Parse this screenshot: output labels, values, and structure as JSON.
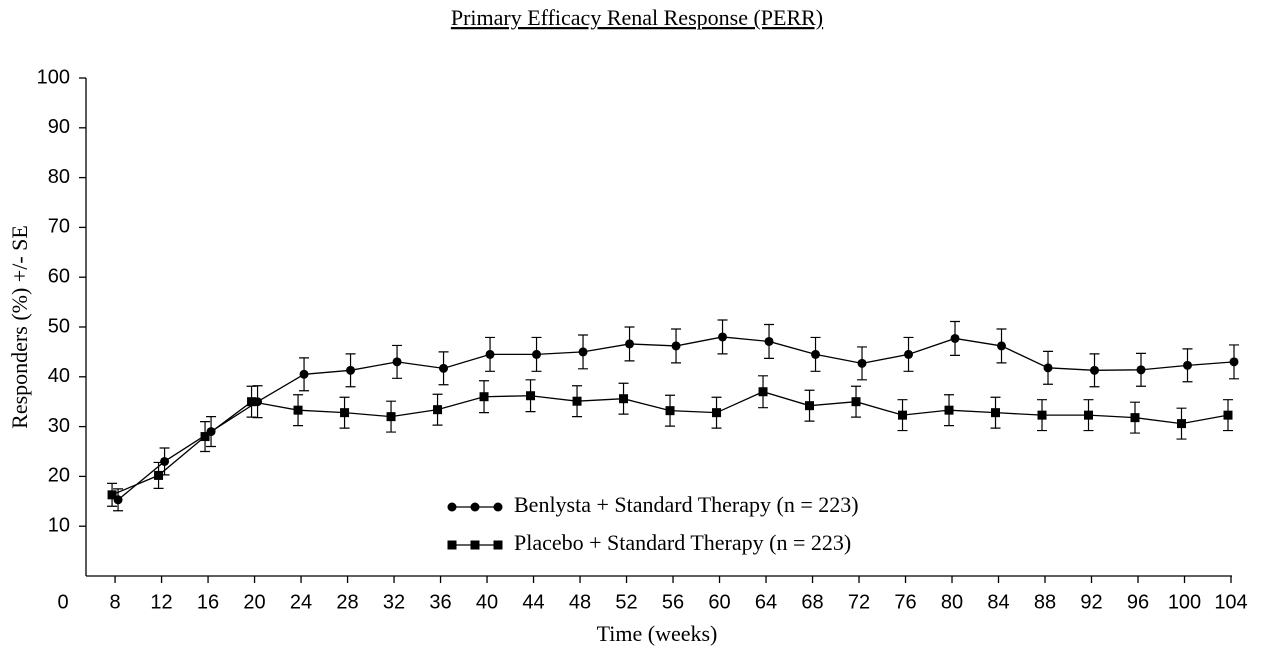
{
  "chart_data": {
    "type": "line",
    "title": "Primary Efficacy Renal Response (PERR)",
    "x_label": "Time (weeks)",
    "y_label": "Responders (%) +/- SE",
    "origin_label": "0",
    "x": [
      8,
      12,
      16,
      20,
      24,
      28,
      32,
      36,
      40,
      44,
      48,
      52,
      56,
      60,
      64,
      68,
      72,
      76,
      80,
      84,
      88,
      92,
      96,
      100,
      104
    ],
    "series": [
      {
        "name": "Benlysta + Standard Therapy (n = 223)",
        "color": "#000000",
        "marker": "circle",
        "values": [
          15.3,
          23,
          29,
          35,
          40.5,
          41.3,
          43,
          41.7,
          44.5,
          44.5,
          45,
          46.6,
          46.2,
          48,
          47.1,
          44.5,
          42.7,
          44.5,
          47.7,
          46.2,
          41.8,
          41.3,
          41.4,
          42.3,
          43
        ],
        "errors": [
          2.2,
          2.7,
          3,
          3.2,
          3.3,
          3.3,
          3.3,
          3.3,
          3.4,
          3.4,
          3.4,
          3.4,
          3.4,
          3.4,
          3.4,
          3.4,
          3.3,
          3.4,
          3.4,
          3.4,
          3.3,
          3.3,
          3.3,
          3.3,
          3.4
        ]
      },
      {
        "name": "Placebo + Standard Therapy (n = 223)",
        "color": "#000000",
        "marker": "square",
        "values": [
          16.3,
          20.2,
          28,
          35,
          33.3,
          32.8,
          32,
          33.4,
          36,
          36.2,
          35.1,
          35.6,
          33.2,
          32.8,
          37,
          34.2,
          35,
          32.3,
          33.3,
          32.8,
          32.3,
          32.3,
          31.8,
          30.6,
          32.3
        ],
        "errors": [
          2.3,
          2.6,
          3,
          3.1,
          3.1,
          3.1,
          3.1,
          3.1,
          3.2,
          3.2,
          3.1,
          3.1,
          3.1,
          3.1,
          3.2,
          3.1,
          3.1,
          3.1,
          3.1,
          3.1,
          3.1,
          3.1,
          3.1,
          3.1,
          3.1
        ]
      }
    ],
    "xlim": [
      5.5,
      104
    ],
    "xticks": [
      8,
      12,
      16,
      20,
      24,
      28,
      32,
      36,
      40,
      44,
      48,
      52,
      56,
      60,
      64,
      68,
      72,
      76,
      80,
      84,
      88,
      92,
      96,
      100,
      104
    ],
    "ylim": [
      0,
      100
    ],
    "yticks": [
      10,
      20,
      30,
      40,
      50,
      60,
      70,
      80,
      90,
      100
    ],
    "grid": false,
    "legend_position": "lower center"
  }
}
